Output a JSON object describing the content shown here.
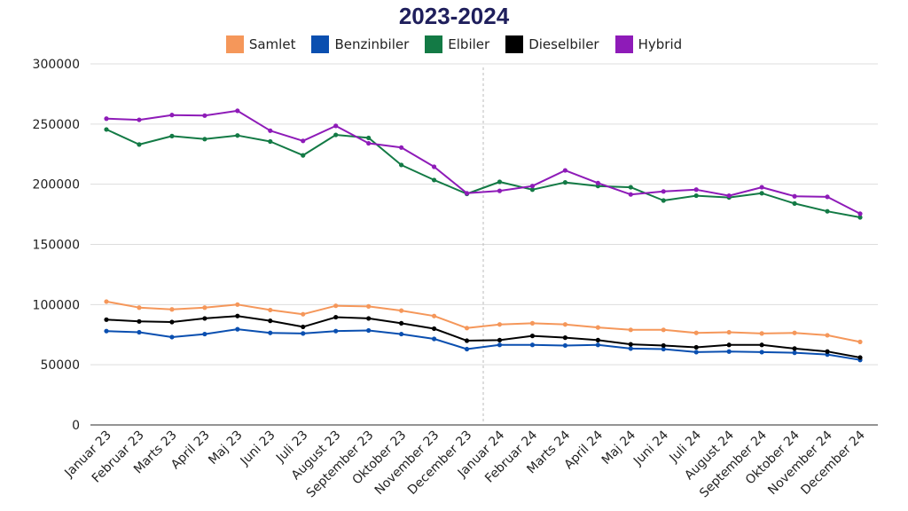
{
  "chart_data": {
    "type": "line",
    "title": "2023-2024",
    "xlabel": "",
    "ylabel": "",
    "ylim": [
      0,
      300000
    ],
    "yticks": [
      0,
      50000,
      100000,
      150000,
      200000,
      250000,
      300000
    ],
    "grid": true,
    "legend_position": "top",
    "categories": [
      "Januar 23",
      "Februar 23",
      "Marts 23",
      "April 23",
      "Maj 23",
      "Juni 23",
      "Juli 23",
      "August 23",
      "September 23",
      "Oktober 23",
      "November 23",
      "December 23",
      "Januar 24",
      "Februar 24",
      "Marts 24",
      "April 24",
      "Maj 24",
      "Juni 24",
      "Juli 24",
      "August 24",
      "September 24",
      "Oktober 24",
      "November 24",
      "December 24"
    ],
    "divider_after": "December 23",
    "series": [
      {
        "name": "Samlet",
        "color": "#f5975a",
        "values": [
          102500,
          97500,
          96000,
          97500,
          100000,
          95500,
          92000,
          99000,
          98500,
          95000,
          90500,
          80500,
          83500,
          84500,
          83500,
          81000,
          79000,
          79000,
          76500,
          77000,
          76000,
          76500,
          74500,
          69000
        ]
      },
      {
        "name": "Benzinbiler",
        "color": "#0a4fb0",
        "values": [
          78000,
          77000,
          73000,
          75500,
          79500,
          76500,
          76000,
          78000,
          78500,
          75500,
          71500,
          63000,
          66500,
          66500,
          66000,
          66500,
          63500,
          63000,
          60500,
          61000,
          60500,
          60000,
          58500,
          54000
        ]
      },
      {
        "name": "Elbiler",
        "color": "#137a45",
        "values": [
          245500,
          233000,
          240000,
          237500,
          240500,
          235500,
          224000,
          241000,
          238500,
          216000,
          203500,
          192000,
          202000,
          195500,
          201500,
          198500,
          197500,
          186500,
          190500,
          189000,
          192500,
          184000,
          177500,
          172500
        ]
      },
      {
        "name": "Dieselbiler",
        "color": "#000000",
        "values": [
          87500,
          86000,
          85500,
          88500,
          90500,
          86500,
          81500,
          89500,
          88500,
          84500,
          80000,
          70000,
          70500,
          74000,
          72500,
          70500,
          67000,
          66000,
          64500,
          66500,
          66500,
          63500,
          61000,
          56000
        ]
      },
      {
        "name": "Hybrid",
        "color": "#8e1bb8",
        "values": [
          254500,
          253500,
          257500,
          257000,
          261000,
          244500,
          236000,
          248500,
          234000,
          230500,
          214500,
          192500,
          194500,
          198500,
          211500,
          201000,
          191500,
          194000,
          195500,
          190500,
          197500,
          190000,
          189500,
          175500
        ]
      }
    ]
  }
}
